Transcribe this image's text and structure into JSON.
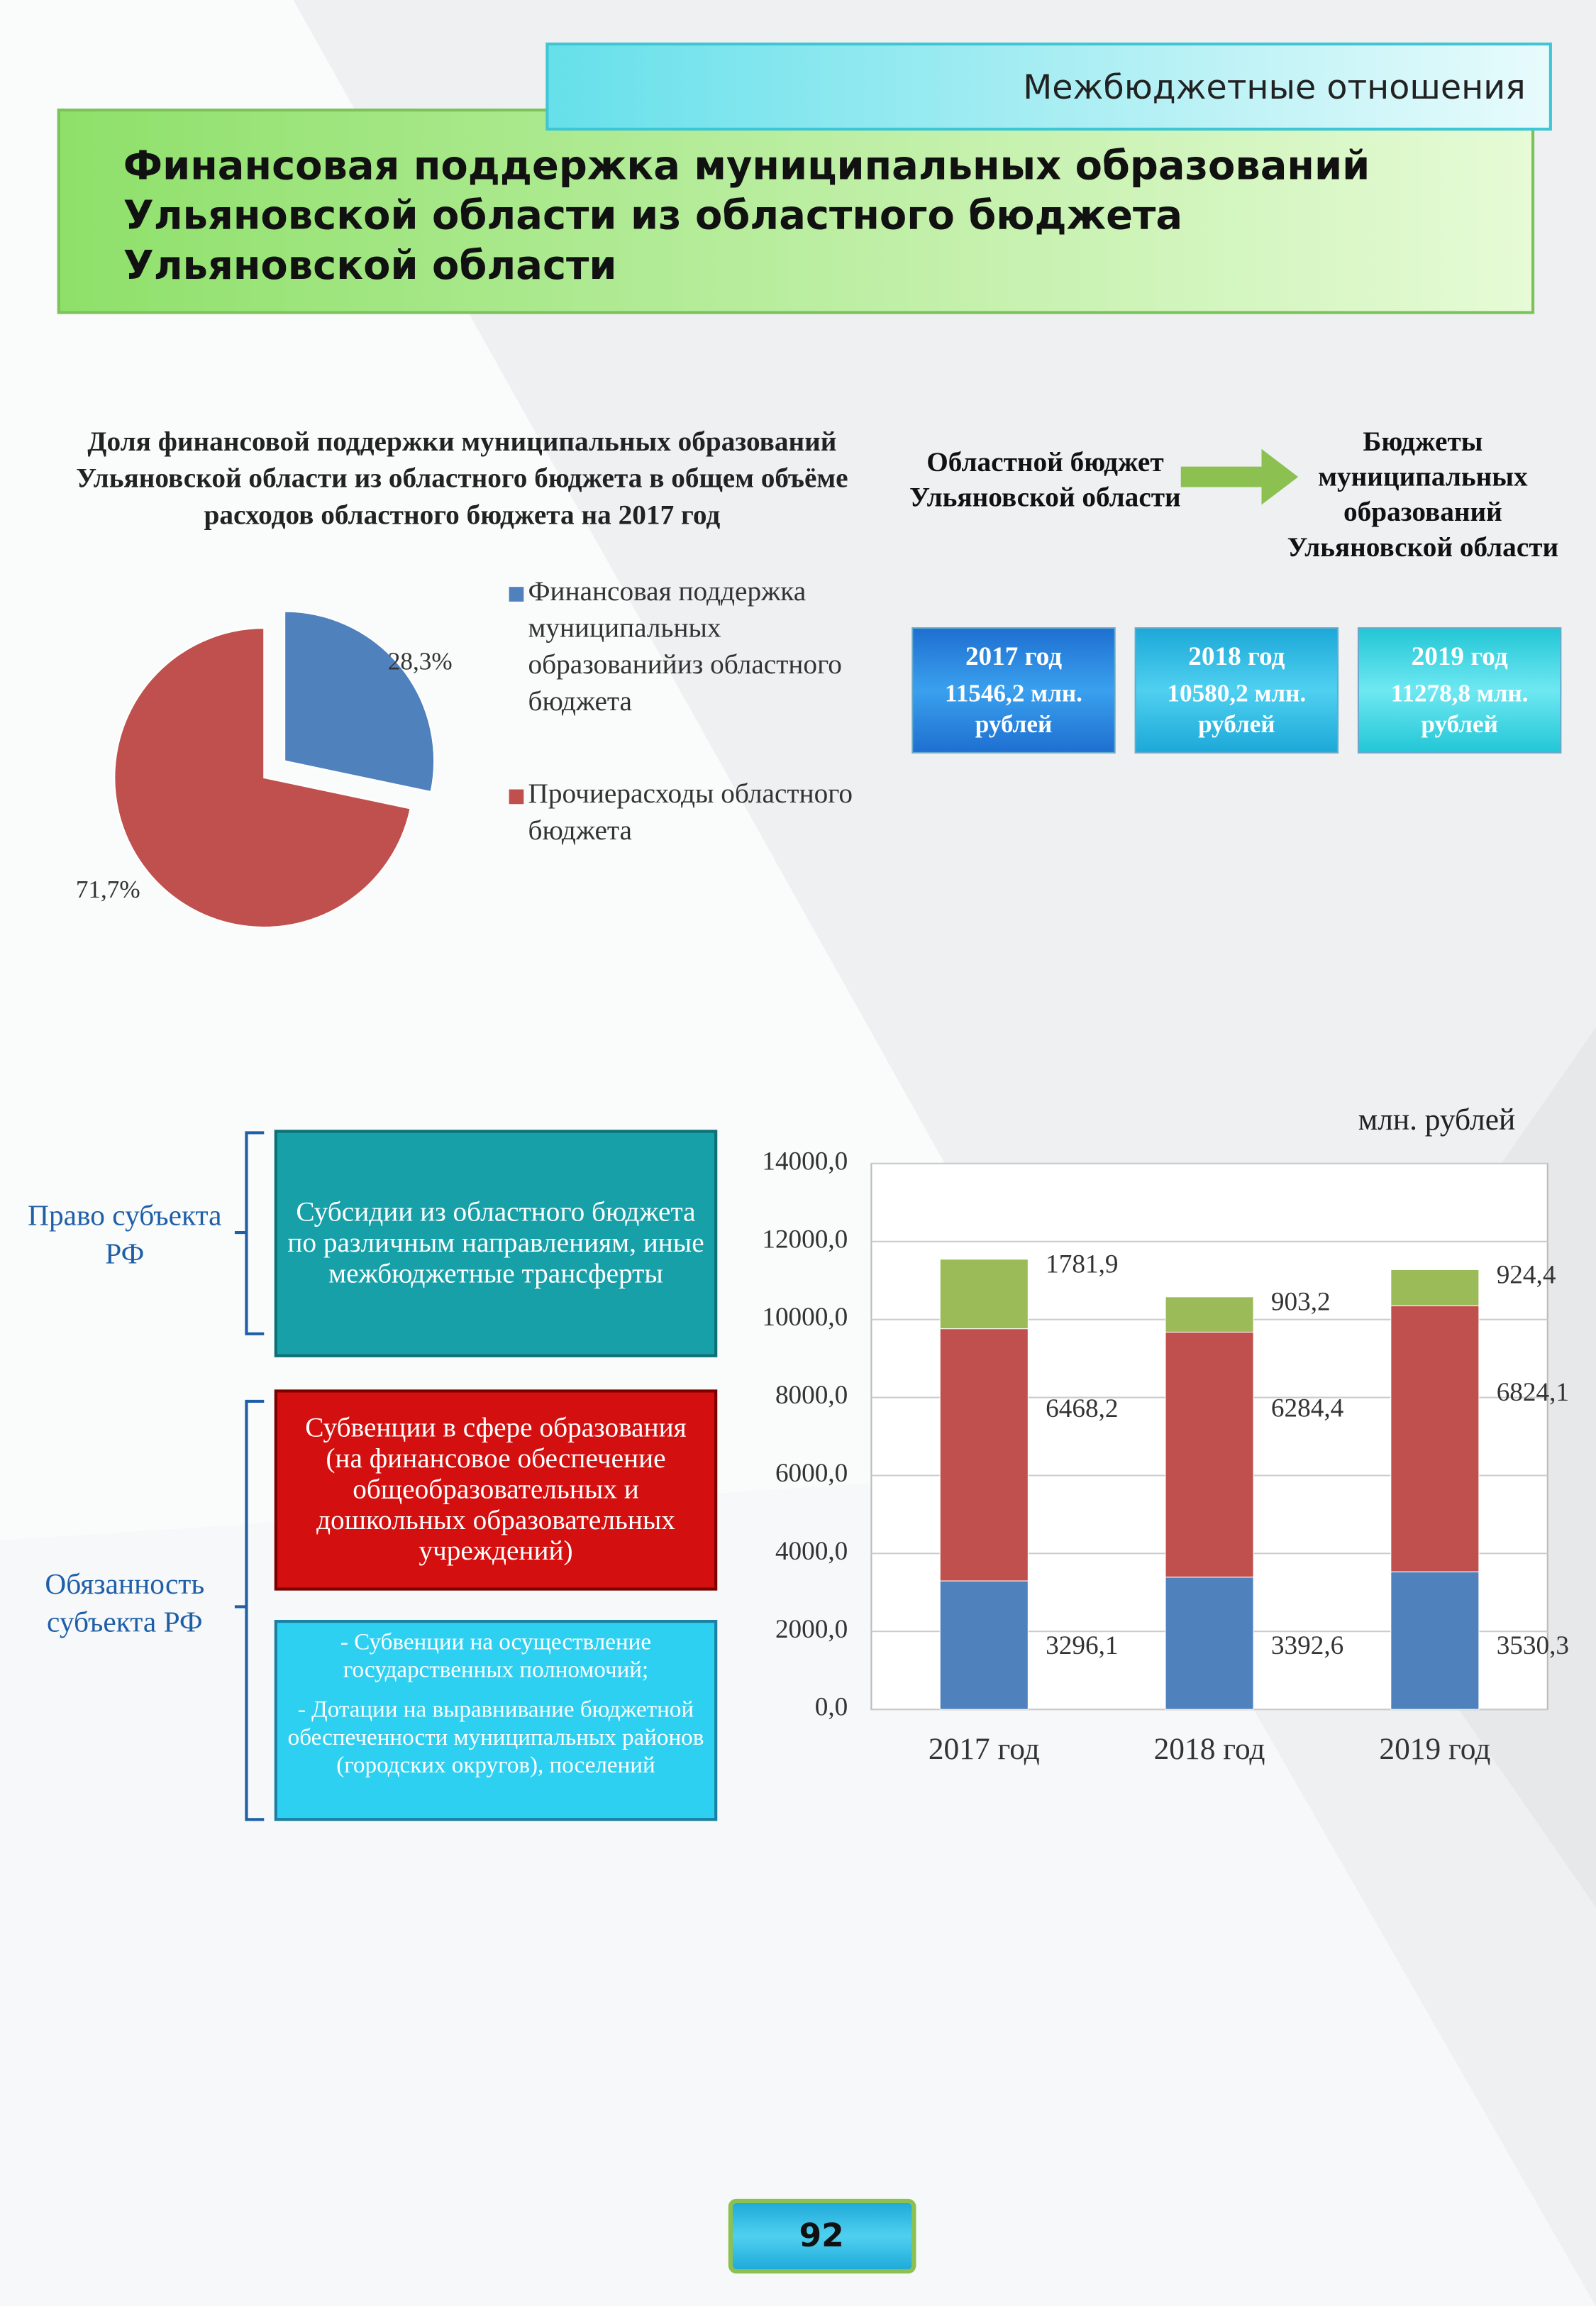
{
  "header": {
    "section": "Межбюджетные отношения",
    "title": "Финансовая поддержка муниципальных образований Ульяновской области из областного бюджета Ульяновской области"
  },
  "flow": {
    "from": "Областной бюджет Ульяновской области",
    "to": "Бюджеты муниципальных образований Ульяновской области"
  },
  "budget_boxes": [
    {
      "year": "2017 год",
      "amount": "11546,2 млн. рублей"
    },
    {
      "year": "2018 год",
      "amount": "10580,2 млн. рублей"
    },
    {
      "year": "2019 год",
      "amount": "11278,8 млн. рублей"
    }
  ],
  "rights": {
    "label": "Право субъекта РФ",
    "box": "Субсидии из областного бюджета по различным направлениям, иные межбюджетные трансферты"
  },
  "duties": {
    "label": "Обязанность субъекта РФ",
    "box": "Субвенции в сфере образования (на финансовое обеспечение общеобразовательных и дошкольных образовательных учреждений)",
    "items": [
      "- Субвенции на осуществление государственных полномочий;",
      "- Дотации на выравнивание бюджетной обеспеченности муниципальных районов (городских округов), поселений"
    ]
  },
  "page_number": "92",
  "chart_data": [
    {
      "type": "pie",
      "title": "Доля финансовой поддержки муниципальных образований Ульяновской области из областного бюджета в общем объёме расходов областного бюджета на 2017 год",
      "series": [
        {
          "name": "Финансовая поддержка муниципальных образованийиз областного бюджета",
          "color": "#4f81bd",
          "values": [
            28.3
          ],
          "value_labels": [
            "28,3%"
          ]
        },
        {
          "name": "Прочиерасходы областного бюджета",
          "color": "#c0504d",
          "values": [
            71.7
          ],
          "value_labels": [
            "71,7%"
          ]
        }
      ]
    },
    {
      "type": "stacked_bar",
      "unit": "млн. рублей",
      "categories": [
        "2017 год",
        "2018 год",
        "2019 год"
      ],
      "series": [
        {
          "color": "#4f81bd",
          "values": [
            3296.1,
            3392.6,
            3530.3
          ],
          "value_labels": [
            "3296,1",
            "3392,6",
            "3530,3"
          ]
        },
        {
          "color": "#c0504d",
          "values": [
            6468.2,
            6284.4,
            6824.1
          ],
          "value_labels": [
            "6468,2",
            "6284,4",
            "6824,1"
          ]
        },
        {
          "color": "#9bbb59",
          "values": [
            1781.9,
            903.2,
            924.4
          ],
          "value_labels": [
            "1781,9",
            "903,2",
            "924,4"
          ]
        }
      ],
      "ylim": [
        0,
        14000
      ],
      "yticks": [
        {
          "value": 0,
          "label": "0,0"
        },
        {
          "value": 2000,
          "label": "2000,0"
        },
        {
          "value": 4000,
          "label": "4000,0"
        },
        {
          "value": 6000,
          "label": "6000,0"
        },
        {
          "value": 8000,
          "label": "8000,0"
        },
        {
          "value": 10000,
          "label": "10000,0"
        },
        {
          "value": 12000,
          "label": "12000,0"
        },
        {
          "value": 14000,
          "label": "14000,0"
        }
      ],
      "grid": true
    }
  ]
}
